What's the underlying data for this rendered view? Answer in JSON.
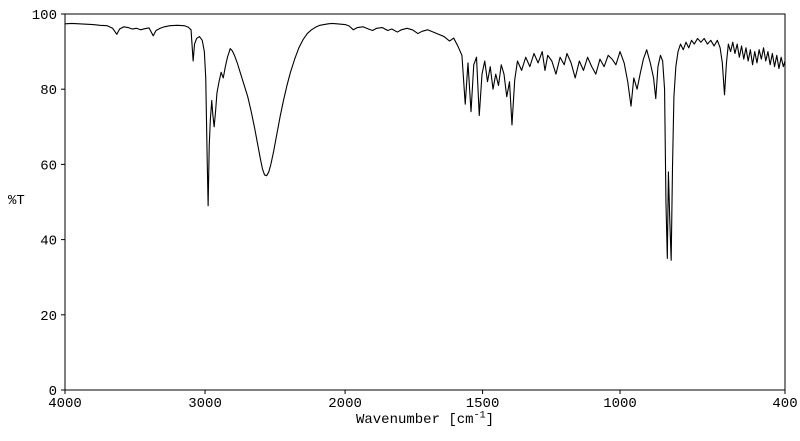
{
  "page": {
    "background": "#ffffff",
    "foreground": "#000000"
  },
  "chart_data": {
    "type": "line",
    "title": "",
    "ylabel": "%T",
    "xlabel_main": "Wavenumber [cm",
    "xlabel_sup": "-1",
    "xlabel_close": "]",
    "line_color": "#000000",
    "grid": false,
    "legend": false,
    "x_axis": {
      "range": [
        4000,
        400
      ],
      "split": 2000,
      "split_fraction": 0.389,
      "ticks": [
        4000,
        3000,
        2000,
        1500,
        1000,
        400
      ]
    },
    "y_axis": {
      "range": [
        0,
        100
      ],
      "ticks": [
        0,
        20,
        40,
        60,
        80,
        100
      ]
    },
    "points": [
      [
        4000,
        97.4
      ],
      [
        3950,
        97.5
      ],
      [
        3900,
        97.4
      ],
      [
        3850,
        97.3
      ],
      [
        3800,
        97.2
      ],
      [
        3750,
        97.0
      ],
      [
        3700,
        96.9
      ],
      [
        3660,
        96.2
      ],
      [
        3630,
        94.6
      ],
      [
        3610,
        96.0
      ],
      [
        3580,
        96.6
      ],
      [
        3550,
        96.4
      ],
      [
        3520,
        96.0
      ],
      [
        3490,
        96.2
      ],
      [
        3460,
        95.8
      ],
      [
        3430,
        96.1
      ],
      [
        3400,
        96.3
      ],
      [
        3370,
        94.2
      ],
      [
        3350,
        95.6
      ],
      [
        3320,
        96.2
      ],
      [
        3290,
        96.6
      ],
      [
        3250,
        96.9
      ],
      [
        3200,
        97.0
      ],
      [
        3150,
        96.9
      ],
      [
        3120,
        96.5
      ],
      [
        3100,
        95.8
      ],
      [
        3085,
        87.5
      ],
      [
        3075,
        92.0
      ],
      [
        3060,
        93.5
      ],
      [
        3040,
        94.0
      ],
      [
        3020,
        93.0
      ],
      [
        3005,
        90.0
      ],
      [
        2995,
        83.0
      ],
      [
        2985,
        62.0
      ],
      [
        2978,
        49.0
      ],
      [
        2970,
        65.0
      ],
      [
        2962,
        72.0
      ],
      [
        2952,
        77.0
      ],
      [
        2945,
        73.5
      ],
      [
        2935,
        70.0
      ],
      [
        2925,
        74.0
      ],
      [
        2915,
        79.0
      ],
      [
        2900,
        82.0
      ],
      [
        2885,
        84.5
      ],
      [
        2870,
        83.0
      ],
      [
        2855,
        86.0
      ],
      [
        2840,
        88.5
      ],
      [
        2820,
        90.8
      ],
      [
        2805,
        90.2
      ],
      [
        2790,
        89.0
      ],
      [
        2770,
        87.0
      ],
      [
        2745,
        84.0
      ],
      [
        2720,
        81.0
      ],
      [
        2695,
        78.0
      ],
      [
        2670,
        74.0
      ],
      [
        2645,
        69.5
      ],
      [
        2625,
        65.5
      ],
      [
        2605,
        61.5
      ],
      [
        2590,
        58.8
      ],
      [
        2575,
        57.2
      ],
      [
        2560,
        57.0
      ],
      [
        2545,
        58.0
      ],
      [
        2530,
        60.0
      ],
      [
        2510,
        63.5
      ],
      [
        2490,
        67.5
      ],
      [
        2465,
        72.5
      ],
      [
        2440,
        77.0
      ],
      [
        2415,
        81.0
      ],
      [
        2390,
        84.5
      ],
      [
        2360,
        88.0
      ],
      [
        2330,
        91.0
      ],
      [
        2300,
        93.2
      ],
      [
        2270,
        94.8
      ],
      [
        2240,
        95.8
      ],
      [
        2210,
        96.5
      ],
      [
        2180,
        97.0
      ],
      [
        2150,
        97.2
      ],
      [
        2120,
        97.4
      ],
      [
        2090,
        97.5
      ],
      [
        2060,
        97.4
      ],
      [
        2030,
        97.3
      ],
      [
        2000,
        97.2
      ],
      [
        1985,
        96.8
      ],
      [
        1970,
        95.8
      ],
      [
        1955,
        96.4
      ],
      [
        1935,
        96.6
      ],
      [
        1915,
        96.0
      ],
      [
        1900,
        95.6
      ],
      [
        1885,
        96.2
      ],
      [
        1865,
        96.4
      ],
      [
        1845,
        95.6
      ],
      [
        1830,
        96.0
      ],
      [
        1810,
        95.2
      ],
      [
        1795,
        95.8
      ],
      [
        1775,
        96.2
      ],
      [
        1755,
        95.8
      ],
      [
        1735,
        94.8
      ],
      [
        1720,
        95.4
      ],
      [
        1700,
        95.8
      ],
      [
        1680,
        95.2
      ],
      [
        1660,
        94.6
      ],
      [
        1640,
        94.0
      ],
      [
        1620,
        92.8
      ],
      [
        1605,
        93.6
      ],
      [
        1590,
        91.5
      ],
      [
        1575,
        89.0
      ],
      [
        1563,
        76.0
      ],
      [
        1553,
        87.0
      ],
      [
        1542,
        74.0
      ],
      [
        1532,
        86.5
      ],
      [
        1522,
        88.5
      ],
      [
        1512,
        73.0
      ],
      [
        1502,
        84.0
      ],
      [
        1492,
        87.5
      ],
      [
        1482,
        82.0
      ],
      [
        1472,
        86.0
      ],
      [
        1462,
        80.0
      ],
      [
        1452,
        84.0
      ],
      [
        1442,
        81.0
      ],
      [
        1432,
        86.5
      ],
      [
        1422,
        84.0
      ],
      [
        1412,
        78.0
      ],
      [
        1402,
        82.0
      ],
      [
        1393,
        70.5
      ],
      [
        1383,
        82.5
      ],
      [
        1373,
        87.5
      ],
      [
        1358,
        85.0
      ],
      [
        1343,
        88.5
      ],
      [
        1328,
        86.0
      ],
      [
        1313,
        89.5
      ],
      [
        1298,
        87.0
      ],
      [
        1283,
        90.0
      ],
      [
        1273,
        85.0
      ],
      [
        1263,
        89.0
      ],
      [
        1248,
        87.5
      ],
      [
        1233,
        84.0
      ],
      [
        1218,
        88.5
      ],
      [
        1203,
        86.5
      ],
      [
        1193,
        89.5
      ],
      [
        1178,
        87.0
      ],
      [
        1163,
        83.0
      ],
      [
        1148,
        87.5
      ],
      [
        1133,
        85.0
      ],
      [
        1118,
        88.5
      ],
      [
        1103,
        86.0
      ],
      [
        1088,
        84.0
      ],
      [
        1073,
        88.0
      ],
      [
        1058,
        86.0
      ],
      [
        1043,
        89.0
      ],
      [
        1029,
        88.0
      ],
      [
        1015,
        86.5
      ],
      [
        1000,
        90.0
      ],
      [
        985,
        87.0
      ],
      [
        972,
        82.0
      ],
      [
        960,
        75.5
      ],
      [
        950,
        83.0
      ],
      [
        938,
        80.0
      ],
      [
        927,
        84.0
      ],
      [
        915,
        88.0
      ],
      [
        903,
        90.5
      ],
      [
        890,
        87.0
      ],
      [
        878,
        83.0
      ],
      [
        870,
        77.5
      ],
      [
        862,
        86.0
      ],
      [
        853,
        89.0
      ],
      [
        845,
        87.5
      ],
      [
        838,
        80.0
      ],
      [
        833,
        50.0
      ],
      [
        828,
        35.0
      ],
      [
        824,
        58.0
      ],
      [
        819,
        45.0
      ],
      [
        814,
        34.5
      ],
      [
        809,
        60.0
      ],
      [
        804,
        78.0
      ],
      [
        797,
        86.0
      ],
      [
        789,
        90.0
      ],
      [
        780,
        92.0
      ],
      [
        770,
        90.5
      ],
      [
        760,
        92.5
      ],
      [
        750,
        91.0
      ],
      [
        740,
        93.0
      ],
      [
        730,
        92.0
      ],
      [
        718,
        93.5
      ],
      [
        706,
        92.5
      ],
      [
        694,
        93.5
      ],
      [
        682,
        92.0
      ],
      [
        670,
        93.0
      ],
      [
        658,
        91.5
      ],
      [
        646,
        93.0
      ],
      [
        636,
        91.0
      ],
      [
        628,
        87.0
      ],
      [
        620,
        78.5
      ],
      [
        613,
        87.0
      ],
      [
        606,
        92.0
      ],
      [
        598,
        90.0
      ],
      [
        590,
        92.5
      ],
      [
        582,
        89.5
      ],
      [
        574,
        92.0
      ],
      [
        566,
        88.5
      ],
      [
        558,
        91.5
      ],
      [
        550,
        88.0
      ],
      [
        542,
        91.0
      ],
      [
        534,
        87.5
      ],
      [
        526,
        90.5
      ],
      [
        518,
        86.5
      ],
      [
        510,
        90.0
      ],
      [
        502,
        87.0
      ],
      [
        494,
        90.5
      ],
      [
        486,
        88.0
      ],
      [
        478,
        91.0
      ],
      [
        470,
        87.5
      ],
      [
        462,
        90.0
      ],
      [
        454,
        86.5
      ],
      [
        446,
        89.5
      ],
      [
        438,
        86.0
      ],
      [
        430,
        89.0
      ],
      [
        422,
        85.5
      ],
      [
        414,
        88.5
      ],
      [
        406,
        86.0
      ],
      [
        400,
        87.5
      ]
    ]
  }
}
